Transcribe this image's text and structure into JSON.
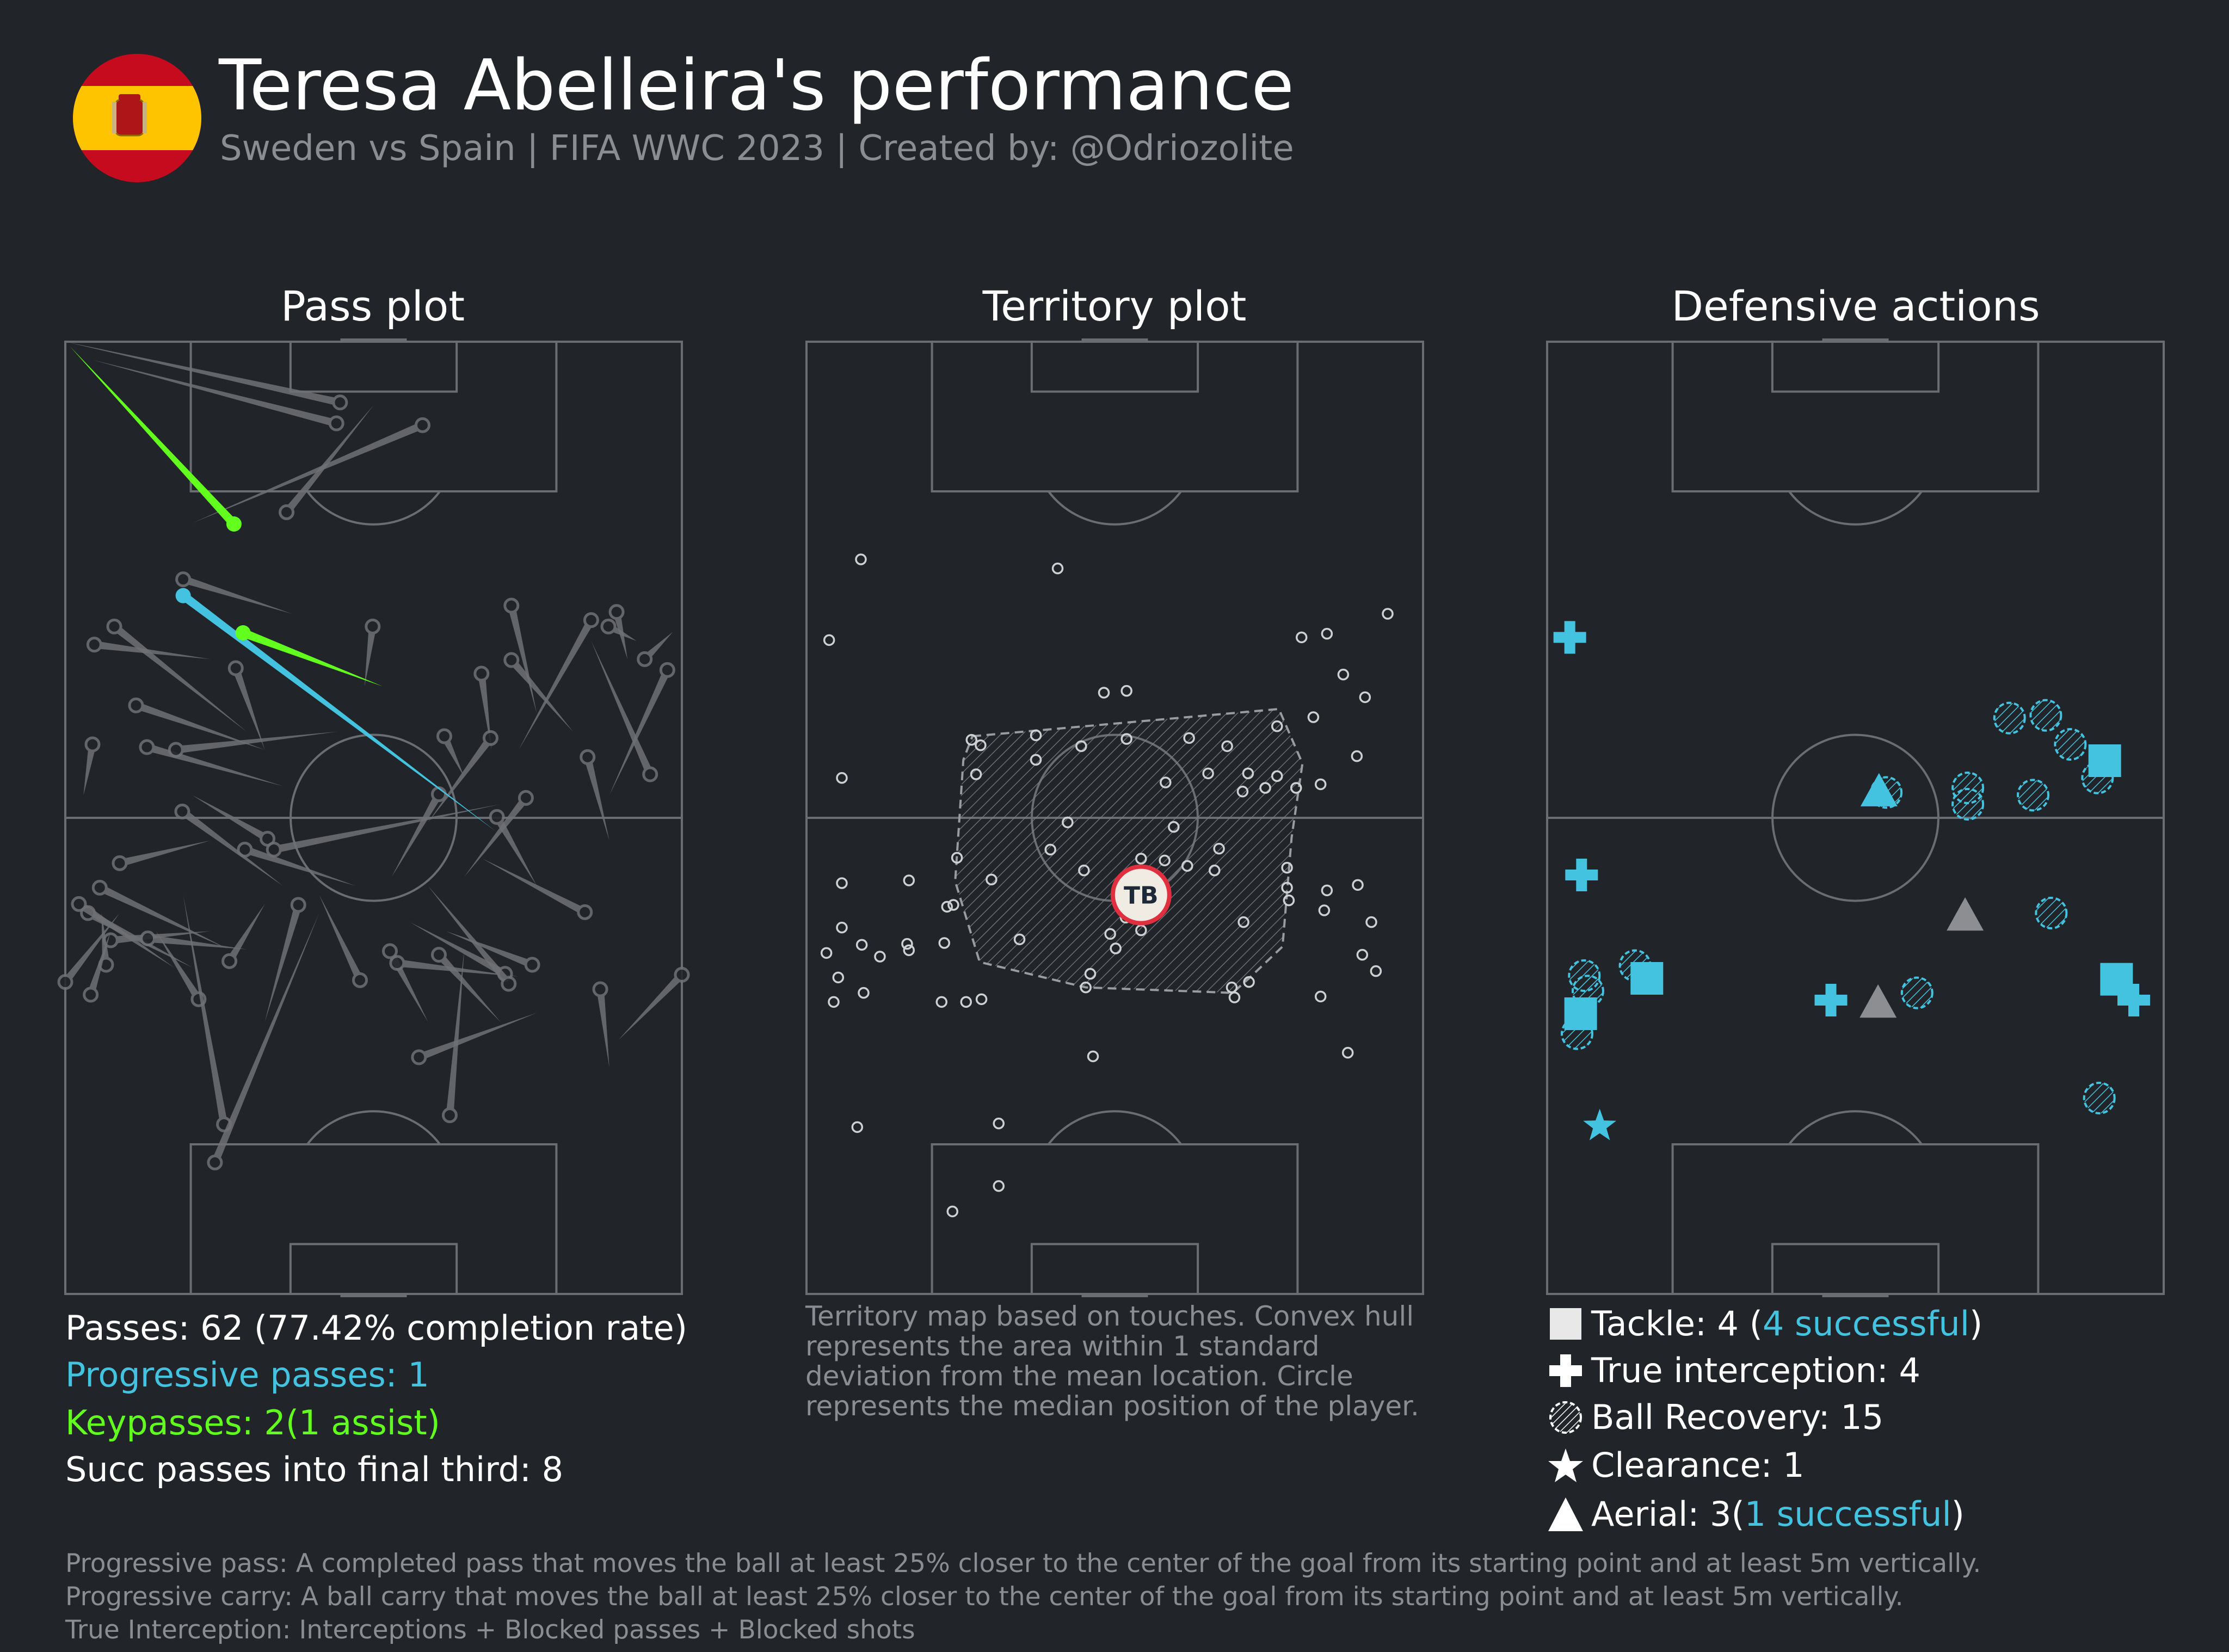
{
  "header": {
    "title": "Teresa Abelleira's performance",
    "subtitle": "Sweden vs Spain | FIFA WWC 2023 | Created by: @Odriozolite"
  },
  "colors": {
    "background": "#212429",
    "pitch_line": "#6b6d72",
    "pass": "#6f7174",
    "progressive": "#43c3e0",
    "keypass": "#62ff1e",
    "defensive": "#43c3e0",
    "failed": "#8c8e91",
    "median_ring": "#e0303f"
  },
  "panels": {
    "pass_title": "Pass plot",
    "territory_title": "Territory plot",
    "defensive_title": "Defensive actions"
  },
  "pass_stats": {
    "passes": "Passes: 62 (77.42% completion rate)",
    "progressive": "Progressive passes: 1",
    "keypasses": "Keypasses: 2(1 assist)",
    "final_third": "Succ passes into final third: 8"
  },
  "territory_note": "Territory map based on touches. Convex hull represents the area within 1 standard deviation from the mean location. Circle represents the median position of the player.",
  "median_label": "TB",
  "defensive_legend": {
    "tackle_prefix": "Tackle: 4 (",
    "tackle_success": "4 successful",
    "tackle_suffix": ")",
    "interception": "True interception: 4",
    "recovery": "Ball Recovery: 15",
    "clearance": "Clearance: 1",
    "aerial_prefix": "Aerial: 3(",
    "aerial_success": "1 successful",
    "aerial_suffix": ")"
  },
  "footnotes": {
    "prog_pass": "Progressive pass: A completed pass that moves the ball at least 25% closer to the center of the goal from its starting point and at least 5m vertically.",
    "prog_carry": "Progressive carry: A ball carry that moves the ball at least 25% closer to the center of the goal from its starting point and at least 5m vertically.",
    "true_interception": "True Interception: Interceptions + Blocked passes + Blocked shots"
  },
  "chart_data": [
    {
      "type": "scatter",
      "subtype": "pass-plot",
      "title": "Pass plot",
      "pitch_dims": [
        68,
        105
      ],
      "attacking_direction": "up",
      "passes": [
        {
          "sx": 30.3,
          "sy": 98.3,
          "ex": 0.0,
          "ey": 105.0
        },
        {
          "sx": 29.9,
          "sy": 96.0,
          "ex": 3.0,
          "ey": 103.0
        },
        {
          "sx": 39.4,
          "sy": 95.8,
          "ex": 14.0,
          "ey": 85.0
        },
        {
          "sx": 24.4,
          "sy": 86.2,
          "ex": 34.0,
          "ey": 98.0
        },
        {
          "sx": 13.0,
          "sy": 78.8,
          "ex": 25.0,
          "ey": 75.0
        },
        {
          "sx": 33.9,
          "sy": 73.6,
          "ex": 33.0,
          "ey": 67.0
        },
        {
          "sx": 5.4,
          "sy": 73.6,
          "ex": 20.0,
          "ey": 62.0
        },
        {
          "sx": 3.2,
          "sy": 71.6,
          "ex": 16.0,
          "ey": 70.0
        },
        {
          "sx": 7.8,
          "sy": 64.9,
          "ex": 22.0,
          "ey": 60.0
        },
        {
          "sx": 9.0,
          "sy": 60.3,
          "ex": 24.0,
          "ey": 56.0
        },
        {
          "sx": 12.2,
          "sy": 60.0,
          "ex": 30.0,
          "ey": 62.0
        },
        {
          "sx": 3.0,
          "sy": 60.6,
          "ex": 2.0,
          "ey": 55.0
        },
        {
          "sx": 18.8,
          "sy": 69.0,
          "ex": 22.0,
          "ey": 60.0
        },
        {
          "sx": 49.2,
          "sy": 75.9,
          "ex": 52.0,
          "ey": 64.0
        },
        {
          "sx": 58.0,
          "sy": 74.3,
          "ex": 50.0,
          "ey": 60.0
        },
        {
          "sx": 60.8,
          "sy": 75.2,
          "ex": 62.0,
          "ey": 70.0
        },
        {
          "sx": 49.2,
          "sy": 69.9,
          "ex": 56.0,
          "ey": 62.0
        },
        {
          "sx": 45.9,
          "sy": 68.4,
          "ex": 47.0,
          "ey": 60.0
        },
        {
          "sx": 66.4,
          "sy": 68.8,
          "ex": 60.0,
          "ey": 55.0
        },
        {
          "sx": 59.9,
          "sy": 73.6,
          "ex": 63.0,
          "ey": 72.0
        },
        {
          "sx": 63.9,
          "sy": 70.0,
          "ex": 67.0,
          "ey": 73.0
        },
        {
          "sx": 64.5,
          "sy": 57.3,
          "ex": 58.0,
          "ey": 72.0
        },
        {
          "sx": 57.6,
          "sy": 59.2,
          "ex": 60.0,
          "ey": 50.0
        },
        {
          "sx": 41.8,
          "sy": 61.5,
          "ex": 44.0,
          "ey": 57.0
        },
        {
          "sx": 46.9,
          "sy": 61.3,
          "ex": 40.0,
          "ey": 52.0
        },
        {
          "sx": 41.2,
          "sy": 55.1,
          "ex": 36.0,
          "ey": 46.0
        },
        {
          "sx": 50.8,
          "sy": 54.7,
          "ex": 44.0,
          "ey": 46.0
        },
        {
          "sx": 47.6,
          "sy": 52.6,
          "ex": 52.0,
          "ey": 45.0
        },
        {
          "sx": 19.8,
          "sy": 49.0,
          "ex": 32.0,
          "ey": 45.0
        },
        {
          "sx": 12.9,
          "sy": 53.2,
          "ex": 24.0,
          "ey": 45.0
        },
        {
          "sx": 22.3,
          "sy": 50.2,
          "ex": 14.0,
          "ey": 55.0
        },
        {
          "sx": 3.8,
          "sy": 44.8,
          "ex": 18.0,
          "ey": 38.0
        },
        {
          "sx": 2.5,
          "sy": 42.0,
          "ex": 14.0,
          "ey": 36.0
        },
        {
          "sx": 5.0,
          "sy": 39.0,
          "ex": 16.0,
          "ey": 40.0
        },
        {
          "sx": 9.1,
          "sy": 39.2,
          "ex": 20.0,
          "ey": 38.0
        },
        {
          "sx": 4.5,
          "sy": 36.3,
          "ex": 4.0,
          "ey": 42.0
        },
        {
          "sx": 2.8,
          "sy": 33.0,
          "ex": 5.0,
          "ey": 40.0
        },
        {
          "sx": 0.0,
          "sy": 34.4,
          "ex": 6.0,
          "ey": 42.0
        },
        {
          "sx": 14.7,
          "sy": 32.5,
          "ex": 10.0,
          "ey": 40.0
        },
        {
          "sx": 18.1,
          "sy": 36.7,
          "ex": 22.0,
          "ey": 43.0
        },
        {
          "sx": 25.7,
          "sy": 42.9,
          "ex": 22.0,
          "ey": 30.0
        },
        {
          "sx": 32.5,
          "sy": 34.6,
          "ex": 28.0,
          "ey": 44.0
        },
        {
          "sx": 35.8,
          "sy": 37.8,
          "ex": 40.0,
          "ey": 30.0
        },
        {
          "sx": 36.6,
          "sy": 36.5,
          "ex": 50.0,
          "ey": 35.0
        },
        {
          "sx": 41.2,
          "sy": 37.4,
          "ex": 48.0,
          "ey": 30.0
        },
        {
          "sx": 48.5,
          "sy": 35.3,
          "ex": 38.0,
          "ey": 41.0
        },
        {
          "sx": 48.9,
          "sy": 34.2,
          "ex": 40.0,
          "ey": 45.0
        },
        {
          "sx": 51.5,
          "sy": 36.3,
          "ex": 42.0,
          "ey": 40.0
        },
        {
          "sx": 57.3,
          "sy": 42.1,
          "ex": 46.0,
          "ey": 48.0
        },
        {
          "sx": 59.0,
          "sy": 33.6,
          "ex": 60.0,
          "ey": 25.0
        },
        {
          "sx": 68.0,
          "sy": 35.2,
          "ex": 61.0,
          "ey": 28.0
        },
        {
          "sx": 39.0,
          "sy": 26.1,
          "ex": 52.0,
          "ey": 31.0
        },
        {
          "sx": 42.4,
          "sy": 19.7,
          "ex": 44.0,
          "ey": 38.0
        },
        {
          "sx": 17.5,
          "sy": 18.7,
          "ex": 13.0,
          "ey": 44.0
        },
        {
          "sx": 16.5,
          "sy": 14.5,
          "ex": 28.0,
          "ey": 42.0
        },
        {
          "sx": 23.0,
          "sy": 49.0,
          "ex": 48.0,
          "ey": 54.0
        },
        {
          "sx": 1.5,
          "sy": 43.0,
          "ex": 12.0,
          "ey": 36.0
        },
        {
          "sx": 6.0,
          "sy": 47.5,
          "ex": 16.0,
          "ey": 50.0
        }
      ],
      "progressive_passes": [
        {
          "sx": 13.0,
          "sy": 77.0,
          "ex": 47.5,
          "ey": 51.0
        }
      ],
      "keypasses": [
        {
          "sx": 18.6,
          "sy": 84.9,
          "ex": 0.5,
          "ey": 104.5,
          "assist": true
        },
        {
          "sx": 19.6,
          "sy": 72.9,
          "ex": 35.0,
          "ey": 67.0,
          "assist": false
        }
      ]
    },
    {
      "type": "scatter",
      "subtype": "territory-plot",
      "title": "Territory plot",
      "pitch_dims": [
        68,
        105
      ],
      "touches": [
        [
          6.0,
          81.0
        ],
        [
          27.7,
          80.0
        ],
        [
          2.5,
          72.1
        ],
        [
          54.6,
          72.4
        ],
        [
          57.4,
          72.8
        ],
        [
          64.1,
          75.0
        ],
        [
          32.8,
          66.3
        ],
        [
          35.3,
          66.5
        ],
        [
          55.9,
          63.6
        ],
        [
          59.2,
          68.3
        ],
        [
          61.6,
          65.8
        ],
        [
          18.2,
          61.1
        ],
        [
          19.2,
          60.5
        ],
        [
          25.3,
          61.6
        ],
        [
          25.3,
          58.9
        ],
        [
          30.3,
          60.4
        ],
        [
          35.3,
          61.2
        ],
        [
          42.2,
          61.3
        ],
        [
          46.4,
          60.4
        ],
        [
          51.9,
          62.6
        ],
        [
          48.7,
          57.4
        ],
        [
          44.3,
          57.4
        ],
        [
          39.6,
          56.4
        ],
        [
          18.7,
          57.3
        ],
        [
          3.9,
          56.9
        ],
        [
          48.1,
          55.4
        ],
        [
          50.6,
          55.8
        ],
        [
          51.9,
          57.1
        ],
        [
          54.0,
          55.8
        ],
        [
          60.7,
          59.3
        ],
        [
          56.7,
          56.2
        ],
        [
          40.5,
          51.5
        ],
        [
          28.8,
          52.0
        ],
        [
          26.9,
          49.0
        ],
        [
          42.0,
          47.2
        ],
        [
          45.0,
          46.7
        ],
        [
          16.6,
          48.1
        ],
        [
          20.4,
          45.7
        ],
        [
          3.9,
          45.3
        ],
        [
          11.3,
          45.6
        ],
        [
          36.9,
          48.0
        ],
        [
          53.0,
          47.0
        ],
        [
          35.2,
          41.5
        ],
        [
          53.0,
          44.8
        ],
        [
          15.5,
          42.7
        ],
        [
          53.2,
          43.4
        ],
        [
          57.1,
          42.3
        ],
        [
          36.9,
          40.1
        ],
        [
          15.2,
          38.7
        ],
        [
          23.5,
          39.1
        ],
        [
          33.5,
          39.7
        ],
        [
          48.2,
          41.0
        ],
        [
          57.4,
          44.5
        ],
        [
          62.3,
          41.0
        ],
        [
          60.8,
          45.1
        ],
        [
          3.9,
          40.4
        ],
        [
          6.1,
          38.5
        ],
        [
          8.1,
          37.2
        ],
        [
          11.3,
          37.9
        ],
        [
          11.1,
          38.6
        ],
        [
          2.2,
          37.6
        ],
        [
          34.1,
          38.1
        ],
        [
          31.3,
          35.3
        ],
        [
          48.8,
          34.4
        ],
        [
          61.3,
          37.4
        ],
        [
          62.8,
          35.6
        ],
        [
          3.5,
          34.9
        ],
        [
          6.3,
          33.2
        ],
        [
          19.3,
          32.5
        ],
        [
          17.6,
          32.2
        ],
        [
          3.0,
          32.2
        ],
        [
          30.8,
          33.8
        ],
        [
          46.9,
          33.8
        ],
        [
          47.2,
          32.7
        ],
        [
          56.7,
          32.8
        ],
        [
          31.6,
          26.2
        ],
        [
          59.7,
          26.6
        ],
        [
          5.6,
          18.4
        ],
        [
          21.2,
          18.8
        ],
        [
          16.1,
          9.1
        ],
        [
          21.2,
          11.9
        ],
        [
          14.9,
          32.2
        ],
        [
          16.2,
          42.9
        ],
        [
          30.6,
          46.7
        ],
        [
          39.5,
          47.8
        ],
        [
          45.5,
          49.1
        ]
      ],
      "hull": [
        [
          18.3,
          61.5
        ],
        [
          52.1,
          64.5
        ],
        [
          54.7,
          58.5
        ],
        [
          53.5,
          50.3
        ],
        [
          52.5,
          38.3
        ],
        [
          48.8,
          34.8
        ],
        [
          47.0,
          33.2
        ],
        [
          30.8,
          33.8
        ],
        [
          19.1,
          36.6
        ],
        [
          16.4,
          45.5
        ],
        [
          17.3,
          58.9
        ]
      ],
      "median": [
        36.9,
        44.0
      ]
    },
    {
      "type": "scatter",
      "subtype": "defensive-actions",
      "title": "Defensive actions",
      "pitch_dims": [
        68,
        105
      ],
      "tackles": [
        {
          "x": 61.5,
          "y": 58.8,
          "successful": true
        },
        {
          "x": 11.0,
          "y": 34.8,
          "successful": true
        },
        {
          "x": 3.7,
          "y": 30.9,
          "successful": true
        },
        {
          "x": 62.8,
          "y": 34.7,
          "successful": true
        }
      ],
      "interceptions": [
        [
          2.5,
          72.4
        ],
        [
          3.8,
          46.2
        ],
        [
          31.3,
          32.4
        ],
        [
          64.7,
          32.4
        ]
      ],
      "recoveries": [
        [
          51.0,
          63.5
        ],
        [
          55.0,
          63.8
        ],
        [
          57.7,
          60.6
        ],
        [
          60.7,
          56.9
        ],
        [
          53.6,
          55.0
        ],
        [
          46.4,
          54.0
        ],
        [
          46.4,
          55.8
        ],
        [
          37.4,
          55.3
        ],
        [
          55.6,
          42.0
        ],
        [
          40.8,
          33.2
        ],
        [
          9.7,
          36.2
        ],
        [
          4.1,
          35.1
        ],
        [
          4.5,
          33.4
        ],
        [
          3.3,
          28.7
        ],
        [
          60.9,
          21.6
        ]
      ],
      "clearances": [
        [
          5.8,
          18.5
        ]
      ],
      "aerials": [
        {
          "x": 36.6,
          "y": 55.4,
          "successful": true
        },
        {
          "x": 46.1,
          "y": 41.7,
          "successful": false
        },
        {
          "x": 36.5,
          "y": 32.1,
          "successful": false
        }
      ]
    }
  ]
}
